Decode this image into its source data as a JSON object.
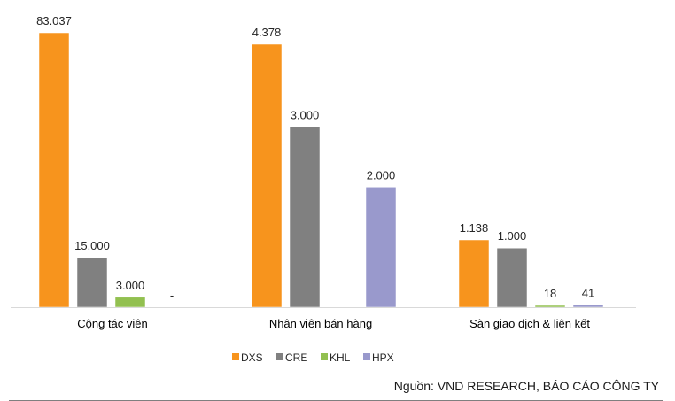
{
  "chart_data": {
    "type": "bar",
    "categories": [
      "Cộng tác viên",
      "Nhân viên bán hàng",
      "Sàn giao dịch & liên kết"
    ],
    "series": [
      {
        "name": "DXS",
        "color": "#F7941D",
        "values": [
          83037,
          4378,
          1138
        ],
        "labels": [
          "83.037",
          "4.378",
          "1.138"
        ]
      },
      {
        "name": "CRE",
        "color": "#808080",
        "values": [
          15000,
          3000,
          1000
        ],
        "labels": [
          "15.000",
          "3.000",
          "1.000"
        ]
      },
      {
        "name": "KHL",
        "color": "#92C050",
        "values": [
          3000,
          0,
          18
        ],
        "labels": [
          "3.000",
          "",
          "18"
        ]
      },
      {
        "name": "HPX",
        "color": "#9999CC",
        "values": [
          0,
          2000,
          41
        ],
        "labels": [
          "-",
          "2.000",
          "41"
        ]
      }
    ],
    "legend_position": "bottom",
    "grid": false
  },
  "source": "Nguồn: VND RESEARCH, BÁO CÁO CÔNG TY"
}
